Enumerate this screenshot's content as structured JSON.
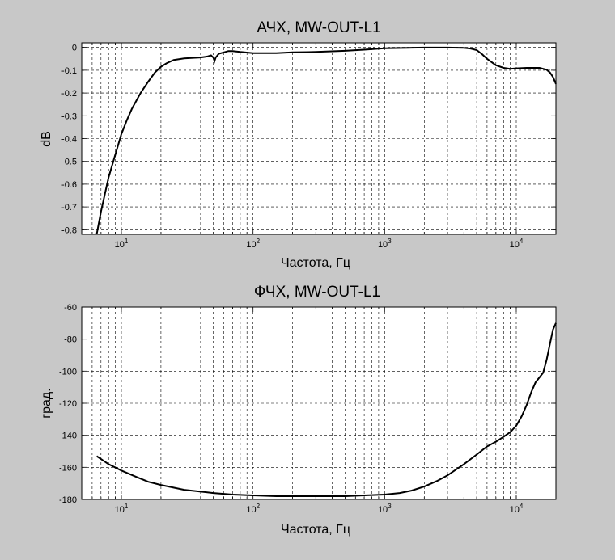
{
  "chart_data": [
    {
      "type": "line",
      "title": "АЧХ, MW-OUT-L1",
      "xlabel": "Частота, Гц",
      "ylabel": "dB",
      "x_scale": "log",
      "xlim": [
        5,
        20000
      ],
      "ylim": [
        -0.82,
        0.02
      ],
      "x_ticks": [
        {
          "value": 10,
          "base": "10",
          "exp": "1"
        },
        {
          "value": 100,
          "base": "10",
          "exp": "2"
        },
        {
          "value": 1000,
          "base": "10",
          "exp": "3"
        },
        {
          "value": 10000,
          "base": "10",
          "exp": "4"
        }
      ],
      "y_ticks": [
        {
          "value": 0,
          "label": "0"
        },
        {
          "value": -0.1,
          "label": "-0.1"
        },
        {
          "value": -0.2,
          "label": "-0.2"
        },
        {
          "value": -0.3,
          "label": "-0.3"
        },
        {
          "value": -0.4,
          "label": "-0.4"
        },
        {
          "value": -0.5,
          "label": "-0.5"
        },
        {
          "value": -0.6,
          "label": "-0.6"
        },
        {
          "value": -0.7,
          "label": "-0.7"
        },
        {
          "value": -0.8,
          "label": "-0.8"
        }
      ],
      "grid": true,
      "line_color": "#000000",
      "series": [
        {
          "x": [
            6.5,
            7,
            8,
            9,
            10,
            11,
            12,
            14,
            16,
            18,
            20,
            22,
            25,
            30,
            35,
            40,
            45,
            48,
            50,
            51,
            52,
            55,
            60,
            65,
            70,
            80,
            100,
            150,
            200,
            300,
            500,
            700,
            1000,
            1500,
            2000,
            3000,
            4000,
            4500,
            5000,
            5500,
            6000,
            7000,
            8000,
            9000,
            10000,
            12000,
            15000,
            17000,
            18000,
            19000,
            20000
          ],
          "y": [
            -0.82,
            -0.72,
            -0.57,
            -0.47,
            -0.38,
            -0.32,
            -0.27,
            -0.2,
            -0.15,
            -0.11,
            -0.085,
            -0.07,
            -0.055,
            -0.048,
            -0.046,
            -0.044,
            -0.04,
            -0.035,
            -0.045,
            -0.06,
            -0.045,
            -0.028,
            -0.022,
            -0.016,
            -0.016,
            -0.02,
            -0.025,
            -0.025,
            -0.022,
            -0.02,
            -0.015,
            -0.01,
            -0.004,
            -0.002,
            -0.001,
            -0.001,
            -0.002,
            -0.005,
            -0.012,
            -0.03,
            -0.05,
            -0.078,
            -0.09,
            -0.094,
            -0.092,
            -0.09,
            -0.09,
            -0.098,
            -0.11,
            -0.13,
            -0.16
          ]
        }
      ]
    },
    {
      "type": "line",
      "title": "ФЧХ, MW-OUT-L1",
      "xlabel": "Частота, Гц",
      "ylabel": "град.",
      "x_scale": "log",
      "xlim": [
        5,
        20000
      ],
      "ylim": [
        -180,
        -60
      ],
      "x_ticks": [
        {
          "value": 10,
          "base": "10",
          "exp": "1"
        },
        {
          "value": 100,
          "base": "10",
          "exp": "2"
        },
        {
          "value": 1000,
          "base": "10",
          "exp": "3"
        },
        {
          "value": 10000,
          "base": "10",
          "exp": "4"
        }
      ],
      "y_ticks": [
        {
          "value": -60,
          "label": "-60"
        },
        {
          "value": -80,
          "label": "-80"
        },
        {
          "value": -100,
          "label": "-100"
        },
        {
          "value": -120,
          "label": "-120"
        },
        {
          "value": -140,
          "label": "-140"
        },
        {
          "value": -160,
          "label": "-160"
        },
        {
          "value": -180,
          "label": "-180"
        }
      ],
      "grid": true,
      "line_color": "#000000",
      "series": [
        {
          "x": [
            6.5,
            8,
            10,
            13,
            16,
            20,
            30,
            50,
            70,
            100,
            150,
            200,
            300,
            500,
            700,
            1000,
            1300,
            1600,
            2000,
            2500,
            3000,
            4000,
            5000,
            6000,
            7000,
            8000,
            9000,
            10000,
            11000,
            12000,
            13000,
            14000,
            16000,
            17000,
            18000,
            19000,
            20000
          ],
          "y": [
            -153,
            -158,
            -162,
            -166,
            -169,
            -171,
            -174,
            -176,
            -177,
            -177.5,
            -178,
            -178,
            -178,
            -178,
            -177.5,
            -177,
            -176,
            -174.5,
            -172,
            -168.5,
            -165,
            -158,
            -152,
            -147,
            -144,
            -141,
            -138,
            -134,
            -128,
            -121,
            -113,
            -107,
            -101,
            -93,
            -83,
            -74,
            -70
          ]
        }
      ]
    }
  ]
}
